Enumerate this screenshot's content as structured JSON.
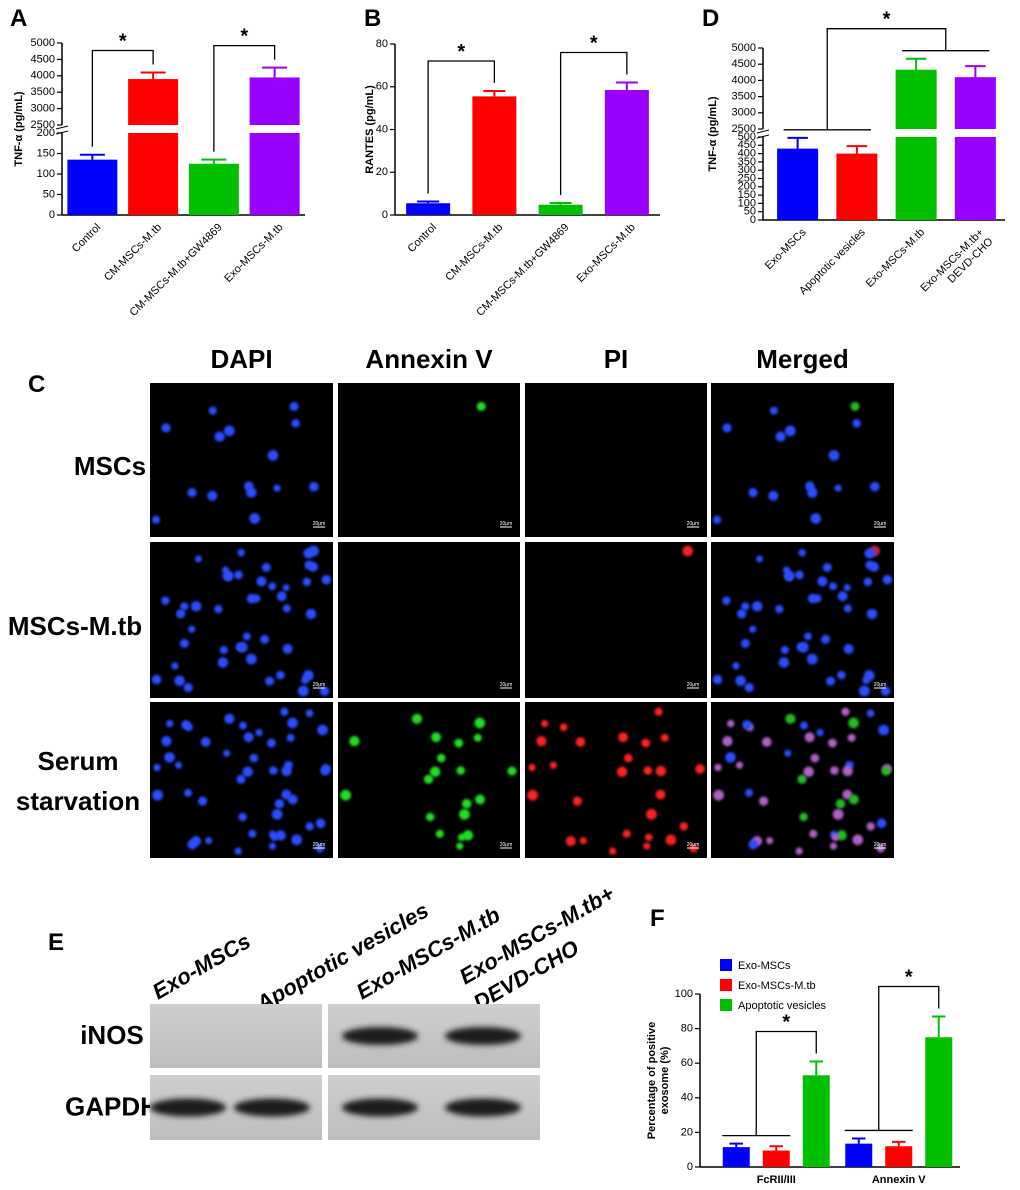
{
  "chart_data": [
    {
      "panel": "A",
      "type": "bar",
      "ylabel": "TNF-α (pg/mL)",
      "categories": [
        "Control",
        "CM-MSCs-M.tb",
        "CM-MSCs-M.tb+GW4869",
        "Exo-MSCs-M.tb"
      ],
      "values": [
        135,
        3900,
        125,
        3950
      ],
      "errors": [
        12,
        200,
        10,
        300
      ],
      "colors": [
        "#0000ff",
        "#ff0000",
        "#00c000",
        "#9900ff"
      ],
      "y_segments": [
        {
          "ylim": [
            0,
            200
          ],
          "yticks": [
            0,
            50,
            100,
            150,
            200
          ]
        },
        {
          "ylim": [
            2500,
            5000
          ],
          "yticks": [
            2500,
            3000,
            3500,
            4000,
            4500,
            5000
          ]
        }
      ],
      "comparisons": [
        {
          "label": "*",
          "groups": [
            [
              0
            ],
            [
              1
            ]
          ]
        },
        {
          "label": "*",
          "groups": [
            [
              2
            ],
            [
              3
            ]
          ]
        }
      ]
    },
    {
      "panel": "B",
      "type": "bar",
      "ylabel": "RANTES (pg/mL)",
      "categories": [
        "Control",
        "CM-MSCs-M.tb",
        "CM-MSCs-M.tb+GW4869",
        "Exo-MSCs-M.tb"
      ],
      "values": [
        5.5,
        55.5,
        4.8,
        58.5
      ],
      "errors": [
        0.8,
        2.5,
        0.8,
        3.5
      ],
      "colors": [
        "#0000ff",
        "#ff0000",
        "#00c000",
        "#9900ff"
      ],
      "y_segments": [
        {
          "ylim": [
            0,
            80
          ],
          "yticks": [
            0,
            20,
            40,
            60,
            80
          ]
        }
      ],
      "comparisons": [
        {
          "label": "*",
          "groups": [
            [
              0
            ],
            [
              1
            ]
          ]
        },
        {
          "label": "*",
          "groups": [
            [
              2
            ],
            [
              3
            ]
          ]
        }
      ]
    },
    {
      "panel": "D",
      "type": "bar",
      "ylabel": "TNF-α (pg/mL)",
      "categories": [
        "Exo-MSCs",
        "Apoptotic vesicles",
        "Exo-MSCs-M.tb",
        [
          "Exo-MSCs-M.tb+",
          "DEVD-CHO"
        ]
      ],
      "values": [
        430,
        400,
        4330,
        4100
      ],
      "errors": [
        65,
        45,
        340,
        340
      ],
      "colors": [
        "#0000ff",
        "#ff0000",
        "#00c000",
        "#9900ff"
      ],
      "y_segments": [
        {
          "ylim": [
            0,
            500
          ],
          "yticks": [
            0,
            50,
            100,
            150,
            200,
            250,
            300,
            350,
            400,
            450,
            500
          ]
        },
        {
          "ylim": [
            2500,
            5000
          ],
          "yticks": [
            2500,
            3000,
            3500,
            4000,
            4500,
            5000
          ]
        }
      ],
      "comparisons": [
        {
          "label": "*",
          "groups": [
            [
              0,
              1
            ],
            [
              2,
              3
            ]
          ]
        }
      ]
    },
    {
      "panel": "F",
      "type": "grouped_bar",
      "ylabel": [
        "Percentage of positive",
        "exosome (%)"
      ],
      "categories": [
        "FcRII/III",
        "Annexin V"
      ],
      "series": [
        {
          "name": "Exo-MSCs",
          "color": "#0000ff",
          "values": [
            11.5,
            13.5
          ],
          "errors": [
            2,
            3
          ]
        },
        {
          "name": "Exo-MSCs-M.tb",
          "color": "#ff0000",
          "values": [
            9.5,
            12
          ],
          "errors": [
            2.5,
            2.5
          ]
        },
        {
          "name": "Apoptotic vesicles",
          "color": "#00c000",
          "values": [
            53,
            75
          ],
          "errors": [
            8,
            12
          ]
        }
      ],
      "y_segments": [
        {
          "ylim": [
            0,
            100
          ],
          "yticks": [
            0,
            20,
            40,
            60,
            80,
            100
          ]
        }
      ],
      "legend": "top-left",
      "comparisons": [
        {
          "label": "*",
          "category": 0,
          "groups": [
            [
              0,
              1
            ],
            [
              2
            ]
          ]
        },
        {
          "label": "*",
          "category": 1,
          "groups": [
            [
              0,
              1
            ],
            [
              2
            ]
          ]
        }
      ]
    }
  ],
  "microscopy": {
    "panel": "C",
    "columns": [
      "DAPI",
      "Annexin V",
      "PI",
      "Merged"
    ],
    "rows": [
      "MSCs",
      "MSCs-M.tb",
      [
        "Serum",
        "starvation"
      ]
    ],
    "scale_bar": "20μm"
  },
  "western_blot": {
    "panel": "E",
    "lanes": [
      "Exo-MSCs",
      "Apoptotic vesicles",
      "Exo-MSCs-M.tb",
      [
        "Exo-MSCs-M.tb+",
        "DEVD-CHO"
      ]
    ],
    "rows": [
      "iNOS",
      "GAPDH"
    ]
  }
}
